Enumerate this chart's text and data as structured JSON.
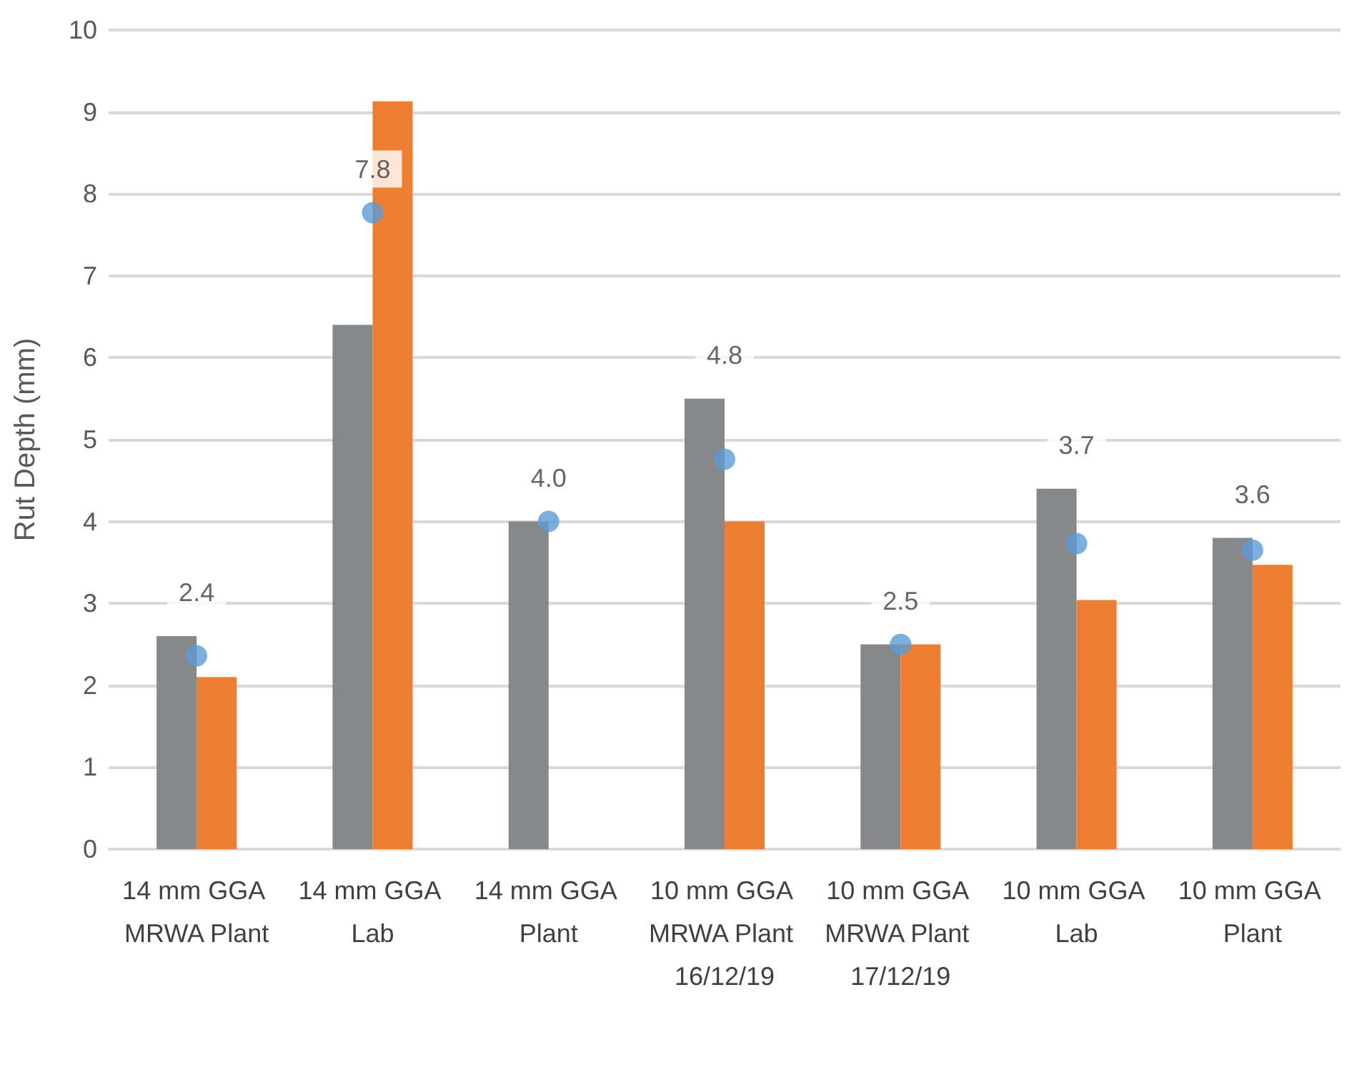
{
  "chart_data": {
    "type": "bar",
    "ylabel": "Rut Depth (mm)",
    "categories": [
      "14 mm GGA MRWA Plant",
      "14 mm GGA Lab",
      "14 mm GGA Plant",
      "10 mm GGA MRWA Plant 16/12/19",
      "10 mm GGA MRWA Plant 17/12/19",
      "10 mm GGA Lab",
      "10 mm GGA Plant"
    ],
    "series": [
      {
        "color": "#878889",
        "values": [
          2.6,
          6.4,
          4.0,
          5.5,
          2.5,
          4.4,
          3.8
        ]
      },
      {
        "color": "#ed7d31",
        "values": [
          2.1,
          9.13,
          null,
          4.0,
          2.5,
          3.04,
          3.47
        ]
      },
      {
        "type": "scatter",
        "color": "#5b9bd5",
        "marker": "circle",
        "x": [
          "14 mm GGA MRWA Plant",
          "14 mm GGA Lab",
          "14 mm GGA Plant",
          "10 mm GGA MRWA Plant 16/12/19",
          "10 mm GGA MRWA Plant 17/12/19",
          "10 mm GGA Lab",
          "10 mm GGA Plant"
        ],
        "values": [
          2.36,
          7.77,
          4.0,
          4.76,
          2.5,
          3.73,
          3.65
        ],
        "value_labels": [
          "2.4",
          "7.8",
          "4.0",
          "4.8",
          "2.5",
          "3.7",
          "3.6"
        ]
      }
    ],
    "ylim": [
      0,
      10
    ],
    "yticks": [
      0,
      1,
      2,
      3,
      4,
      5,
      6,
      7,
      8,
      9,
      10
    ],
    "grid": "y"
  }
}
